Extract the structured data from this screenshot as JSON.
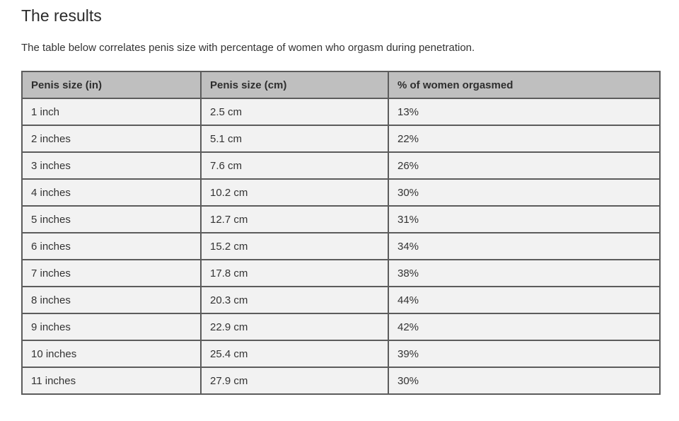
{
  "page": {
    "title": "The results",
    "description": "The table below correlates penis size with percentage of women who orgasm during penetration."
  },
  "table": {
    "headers": [
      "Penis size (in)",
      "Penis size (cm)",
      "% of women orgasmed"
    ],
    "rows": [
      [
        "1 inch",
        "2.5 cm",
        "13%"
      ],
      [
        "2 inches",
        "5.1 cm",
        "22%"
      ],
      [
        "3 inches",
        "7.6 cm",
        "26%"
      ],
      [
        "4 inches",
        "10.2 cm",
        "30%"
      ],
      [
        "5 inches",
        "12.7 cm",
        "31%"
      ],
      [
        "6 inches",
        "15.2 cm",
        "34%"
      ],
      [
        "7 inches",
        "17.8 cm",
        "38%"
      ],
      [
        "8 inches",
        "20.3 cm",
        "44%"
      ],
      [
        "9 inches",
        "22.9 cm",
        "42%"
      ],
      [
        "10 inches",
        "25.4 cm",
        "39%"
      ],
      [
        "11 inches",
        "27.9 cm",
        "30%"
      ]
    ]
  },
  "colors": {
    "header_bg": "#bfbfbf",
    "row_bg": "#f2f2f2",
    "border": "#5c5c5c",
    "text": "#333333"
  }
}
